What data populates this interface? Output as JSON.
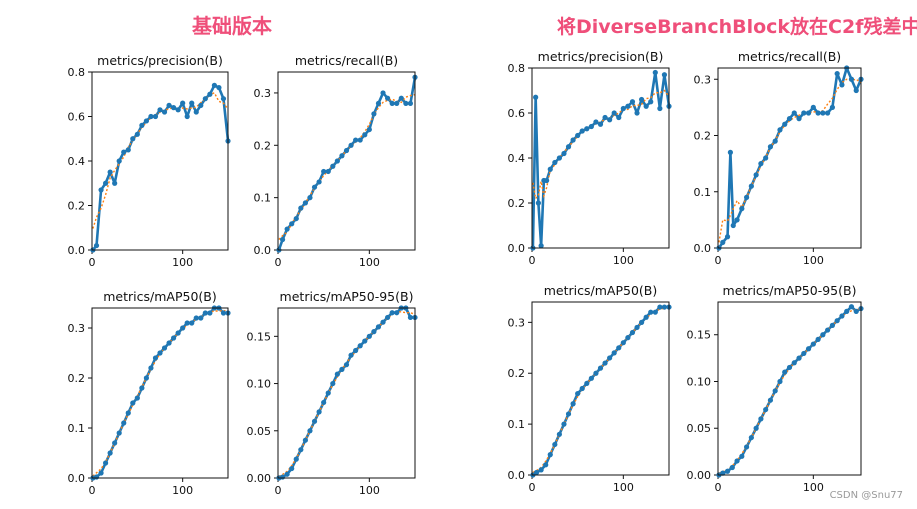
{
  "headings": {
    "left": "基础版本",
    "right": "将DiverseBranchBlock放在C2f残差中"
  },
  "watermark": "CSDN @Snu77",
  "colors": {
    "heading": "#ef4f7a",
    "line": "#1f77b4",
    "smooth": "#ff7f0e"
  },
  "chart_data": [
    {
      "type": "line",
      "panel": "left-top-left",
      "title": "metrics/precision(B)",
      "xlim": [
        0,
        150
      ],
      "ylim": [
        0,
        0.8
      ],
      "xticks": [
        0,
        100
      ],
      "xtick_labels": [
        "0",
        "100"
      ],
      "yticks": [
        0,
        0.2,
        0.4,
        0.6,
        0.8
      ],
      "ytick_labels": [
        "0.0",
        "0.2",
        "0.4",
        "0.6",
        "0.8"
      ],
      "series": [
        {
          "x": [
            1,
            5,
            10,
            15,
            20,
            25,
            30,
            35,
            40,
            45,
            50,
            55,
            60,
            65,
            70,
            75,
            80,
            85,
            90,
            95,
            100,
            105,
            110,
            115,
            120,
            125,
            130,
            135,
            140,
            145,
            150
          ],
          "values": [
            0.0,
            0.02,
            0.27,
            0.3,
            0.35,
            0.3,
            0.4,
            0.44,
            0.45,
            0.5,
            0.52,
            0.56,
            0.58,
            0.6,
            0.6,
            0.63,
            0.62,
            0.65,
            0.64,
            0.63,
            0.66,
            0.6,
            0.66,
            0.62,
            0.65,
            0.68,
            0.7,
            0.74,
            0.73,
            0.68,
            0.49
          ]
        }
      ]
    },
    {
      "type": "line",
      "panel": "left-top-right",
      "title": "metrics/recall(B)",
      "xlim": [
        0,
        150
      ],
      "ylim": [
        0,
        0.34
      ],
      "xticks": [
        0,
        100
      ],
      "xtick_labels": [
        "0",
        "100"
      ],
      "yticks": [
        0,
        0.1,
        0.2,
        0.3
      ],
      "ytick_labels": [
        "0.0",
        "0.1",
        "0.2",
        "0.3"
      ],
      "series": [
        {
          "x": [
            1,
            5,
            10,
            15,
            20,
            25,
            30,
            35,
            40,
            45,
            50,
            55,
            60,
            65,
            70,
            75,
            80,
            85,
            90,
            95,
            100,
            105,
            110,
            115,
            120,
            125,
            130,
            135,
            140,
            145,
            150
          ],
          "values": [
            0.0,
            0.02,
            0.04,
            0.05,
            0.06,
            0.08,
            0.09,
            0.1,
            0.12,
            0.13,
            0.15,
            0.15,
            0.16,
            0.17,
            0.18,
            0.19,
            0.2,
            0.21,
            0.21,
            0.22,
            0.23,
            0.26,
            0.28,
            0.3,
            0.29,
            0.28,
            0.28,
            0.29,
            0.28,
            0.28,
            0.33
          ]
        }
      ]
    },
    {
      "type": "line",
      "panel": "left-bottom-left",
      "title": "metrics/mAP50(B)",
      "xlim": [
        0,
        150
      ],
      "ylim": [
        0,
        0.34
      ],
      "xticks": [
        0,
        100
      ],
      "xtick_labels": [
        "0",
        "100"
      ],
      "yticks": [
        0,
        0.1,
        0.2,
        0.3
      ],
      "ytick_labels": [
        "0.0",
        "0.1",
        "0.2",
        "0.3"
      ],
      "series": [
        {
          "x": [
            1,
            5,
            10,
            15,
            20,
            25,
            30,
            35,
            40,
            45,
            50,
            55,
            60,
            65,
            70,
            75,
            80,
            85,
            90,
            95,
            100,
            105,
            110,
            115,
            120,
            125,
            130,
            135,
            140,
            145,
            150
          ],
          "values": [
            0.0,
            0.002,
            0.01,
            0.03,
            0.05,
            0.07,
            0.09,
            0.11,
            0.13,
            0.15,
            0.16,
            0.18,
            0.2,
            0.22,
            0.24,
            0.25,
            0.26,
            0.27,
            0.28,
            0.29,
            0.3,
            0.31,
            0.31,
            0.32,
            0.32,
            0.33,
            0.33,
            0.34,
            0.34,
            0.33,
            0.33
          ]
        }
      ]
    },
    {
      "type": "line",
      "panel": "left-bottom-right",
      "title": "metrics/mAP50-95(B)",
      "xlim": [
        0,
        150
      ],
      "ylim": [
        0,
        0.18
      ],
      "xticks": [
        0,
        100
      ],
      "xtick_labels": [
        "0",
        "100"
      ],
      "yticks": [
        0,
        0.05,
        0.1,
        0.15
      ],
      "ytick_labels": [
        "0.00",
        "0.05",
        "0.10",
        "0.15"
      ],
      "series": [
        {
          "x": [
            1,
            5,
            10,
            15,
            20,
            25,
            30,
            35,
            40,
            45,
            50,
            55,
            60,
            65,
            70,
            75,
            80,
            85,
            90,
            95,
            100,
            105,
            110,
            115,
            120,
            125,
            130,
            135,
            140,
            145,
            150
          ],
          "values": [
            0.0,
            0.001,
            0.004,
            0.01,
            0.02,
            0.03,
            0.04,
            0.05,
            0.06,
            0.07,
            0.08,
            0.09,
            0.1,
            0.11,
            0.115,
            0.12,
            0.13,
            0.135,
            0.14,
            0.145,
            0.15,
            0.155,
            0.16,
            0.165,
            0.17,
            0.175,
            0.175,
            0.18,
            0.18,
            0.17,
            0.17
          ]
        }
      ]
    },
    {
      "type": "line",
      "panel": "right-top-left",
      "title": "metrics/precision(B)",
      "xlim": [
        0,
        150
      ],
      "ylim": [
        0,
        0.8
      ],
      "xticks": [
        0,
        100
      ],
      "xtick_labels": [
        "0",
        "100"
      ],
      "yticks": [
        0,
        0.2,
        0.4,
        0.6,
        0.8
      ],
      "ytick_labels": [
        "0.0",
        "0.2",
        "0.4",
        "0.6",
        "0.8"
      ],
      "series": [
        {
          "x": [
            1,
            4,
            7,
            10,
            13,
            16,
            20,
            25,
            30,
            35,
            40,
            45,
            50,
            55,
            60,
            65,
            70,
            75,
            80,
            85,
            90,
            95,
            100,
            105,
            110,
            115,
            120,
            125,
            130,
            135,
            140,
            145,
            150
          ],
          "values": [
            0.0,
            0.67,
            0.2,
            0.01,
            0.3,
            0.3,
            0.35,
            0.38,
            0.4,
            0.42,
            0.45,
            0.48,
            0.5,
            0.52,
            0.53,
            0.54,
            0.56,
            0.55,
            0.58,
            0.57,
            0.6,
            0.58,
            0.62,
            0.63,
            0.65,
            0.6,
            0.66,
            0.63,
            0.65,
            0.78,
            0.62,
            0.77,
            0.63
          ]
        }
      ]
    },
    {
      "type": "line",
      "panel": "right-top-right",
      "title": "metrics/recall(B)",
      "xlim": [
        0,
        150
      ],
      "ylim": [
        0,
        0.32
      ],
      "xticks": [
        0,
        100
      ],
      "xtick_labels": [
        "0",
        "100"
      ],
      "yticks": [
        0,
        0.1,
        0.2,
        0.3
      ],
      "ytick_labels": [
        "0.0",
        "0.1",
        "0.2",
        "0.3"
      ],
      "series": [
        {
          "x": [
            1,
            5,
            10,
            13,
            16,
            20,
            25,
            30,
            35,
            40,
            45,
            50,
            55,
            60,
            65,
            70,
            75,
            80,
            85,
            90,
            95,
            100,
            105,
            110,
            115,
            120,
            125,
            130,
            135,
            140,
            145,
            150
          ],
          "values": [
            0.0,
            0.01,
            0.02,
            0.17,
            0.04,
            0.05,
            0.07,
            0.09,
            0.11,
            0.13,
            0.15,
            0.16,
            0.18,
            0.19,
            0.21,
            0.22,
            0.23,
            0.24,
            0.23,
            0.24,
            0.24,
            0.25,
            0.24,
            0.24,
            0.24,
            0.25,
            0.31,
            0.29,
            0.32,
            0.3,
            0.28,
            0.3
          ]
        }
      ]
    },
    {
      "type": "line",
      "panel": "right-bottom-left",
      "title": "metrics/mAP50(B)",
      "xlim": [
        0,
        150
      ],
      "ylim": [
        0,
        0.34
      ],
      "xticks": [
        0,
        100
      ],
      "xtick_labels": [
        "0",
        "100"
      ],
      "yticks": [
        0,
        0.1,
        0.2,
        0.3
      ],
      "ytick_labels": [
        "0.0",
        "0.1",
        "0.2",
        "0.3"
      ],
      "series": [
        {
          "x": [
            1,
            5,
            10,
            15,
            20,
            25,
            30,
            35,
            40,
            45,
            50,
            55,
            60,
            65,
            70,
            75,
            80,
            85,
            90,
            95,
            100,
            105,
            110,
            115,
            120,
            125,
            130,
            135,
            140,
            145,
            150
          ],
          "values": [
            0.0,
            0.005,
            0.01,
            0.02,
            0.04,
            0.06,
            0.08,
            0.1,
            0.12,
            0.14,
            0.16,
            0.17,
            0.18,
            0.19,
            0.2,
            0.21,
            0.22,
            0.23,
            0.24,
            0.25,
            0.26,
            0.27,
            0.28,
            0.29,
            0.3,
            0.31,
            0.32,
            0.32,
            0.33,
            0.33,
            0.33
          ]
        }
      ]
    },
    {
      "type": "line",
      "panel": "right-bottom-right",
      "title": "metrics/mAP50-95(B)",
      "xlim": [
        0,
        150
      ],
      "ylim": [
        0,
        0.185
      ],
      "xticks": [
        0,
        100
      ],
      "xtick_labels": [
        "0",
        "100"
      ],
      "yticks": [
        0,
        0.05,
        0.1,
        0.15
      ],
      "ytick_labels": [
        "0.00",
        "0.05",
        "0.10",
        "0.15"
      ],
      "series": [
        {
          "x": [
            1,
            5,
            10,
            15,
            20,
            25,
            30,
            35,
            40,
            45,
            50,
            55,
            60,
            65,
            70,
            75,
            80,
            85,
            90,
            95,
            100,
            105,
            110,
            115,
            120,
            125,
            130,
            135,
            140,
            145,
            150
          ],
          "values": [
            0.0,
            0.002,
            0.004,
            0.008,
            0.015,
            0.02,
            0.03,
            0.04,
            0.05,
            0.06,
            0.07,
            0.08,
            0.09,
            0.1,
            0.11,
            0.115,
            0.12,
            0.125,
            0.13,
            0.135,
            0.14,
            0.145,
            0.15,
            0.155,
            0.16,
            0.165,
            0.17,
            0.175,
            0.18,
            0.175,
            0.178
          ]
        }
      ]
    }
  ]
}
